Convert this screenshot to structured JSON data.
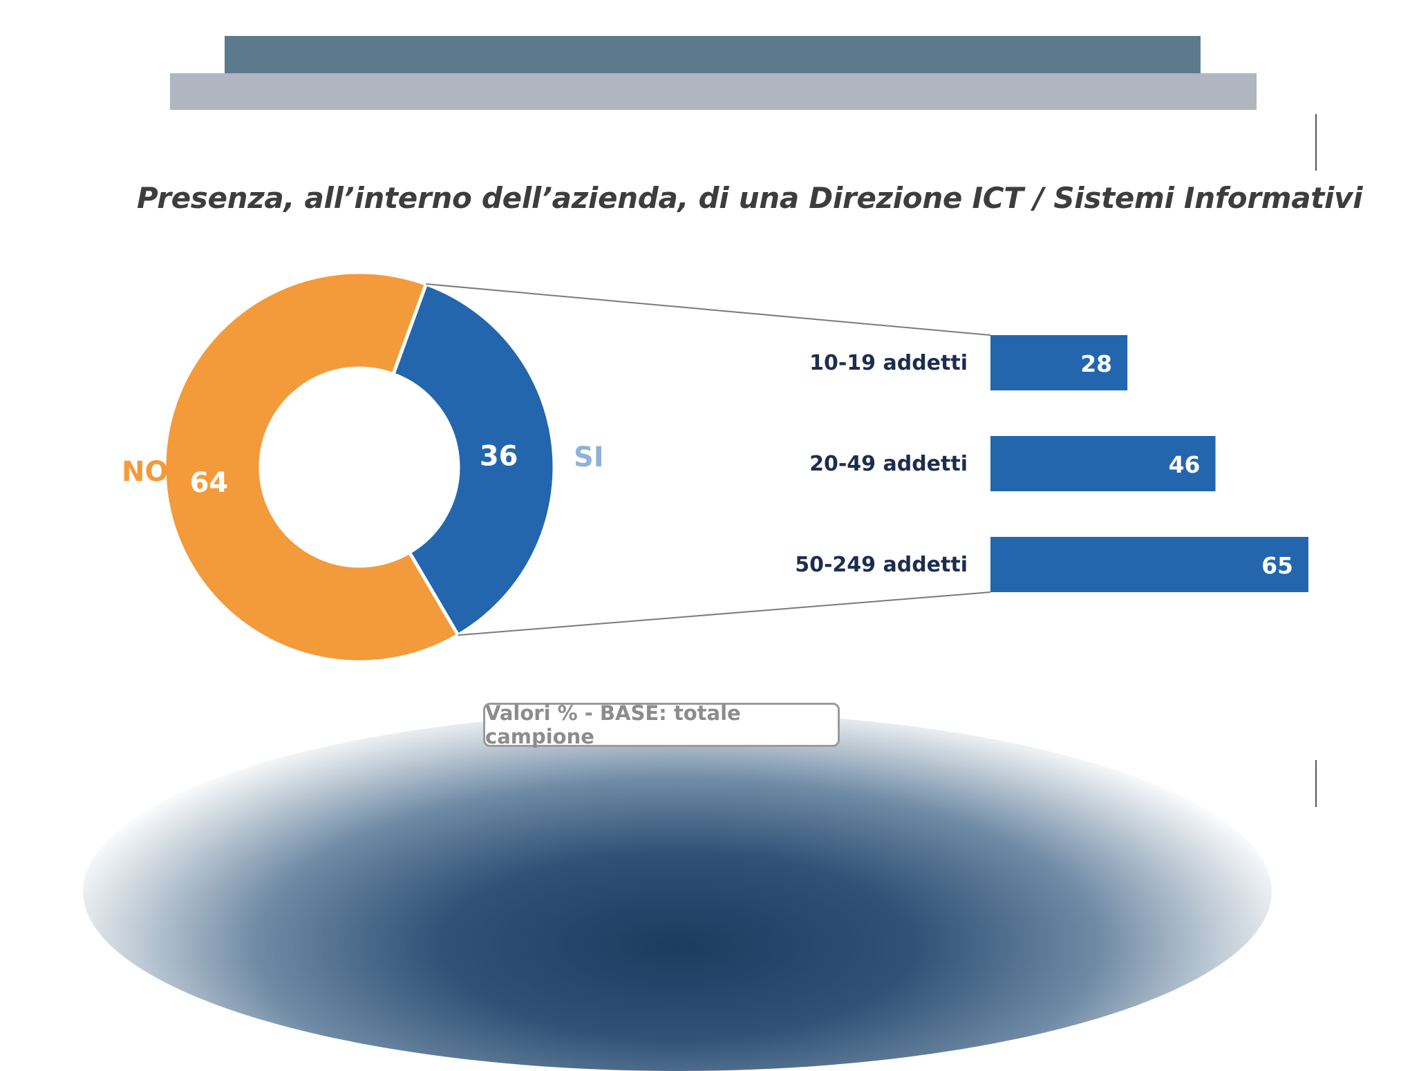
{
  "title": "Presenza, all’interno dell’azienda, di una Direzione ICT / Sistemi Informativi",
  "footnote": "Valori % - BASE: totale campione",
  "colors": {
    "no": "#f39a3a",
    "si": "#2366ad",
    "si_label": "#8fb2d6",
    "bar": "#2366ad",
    "category_text": "#1d2d4f"
  },
  "chart_data": [
    {
      "type": "pie",
      "donut": true,
      "slices": [
        {
          "label": "SI",
          "value": 36
        },
        {
          "label": "NO",
          "value": 64
        }
      ]
    },
    {
      "type": "bar",
      "orientation": "horizontal",
      "categories": [
        "10-19 addetti",
        "20-49 addetti",
        "50-249 addetti"
      ],
      "values": [
        28,
        46,
        65
      ]
    }
  ]
}
